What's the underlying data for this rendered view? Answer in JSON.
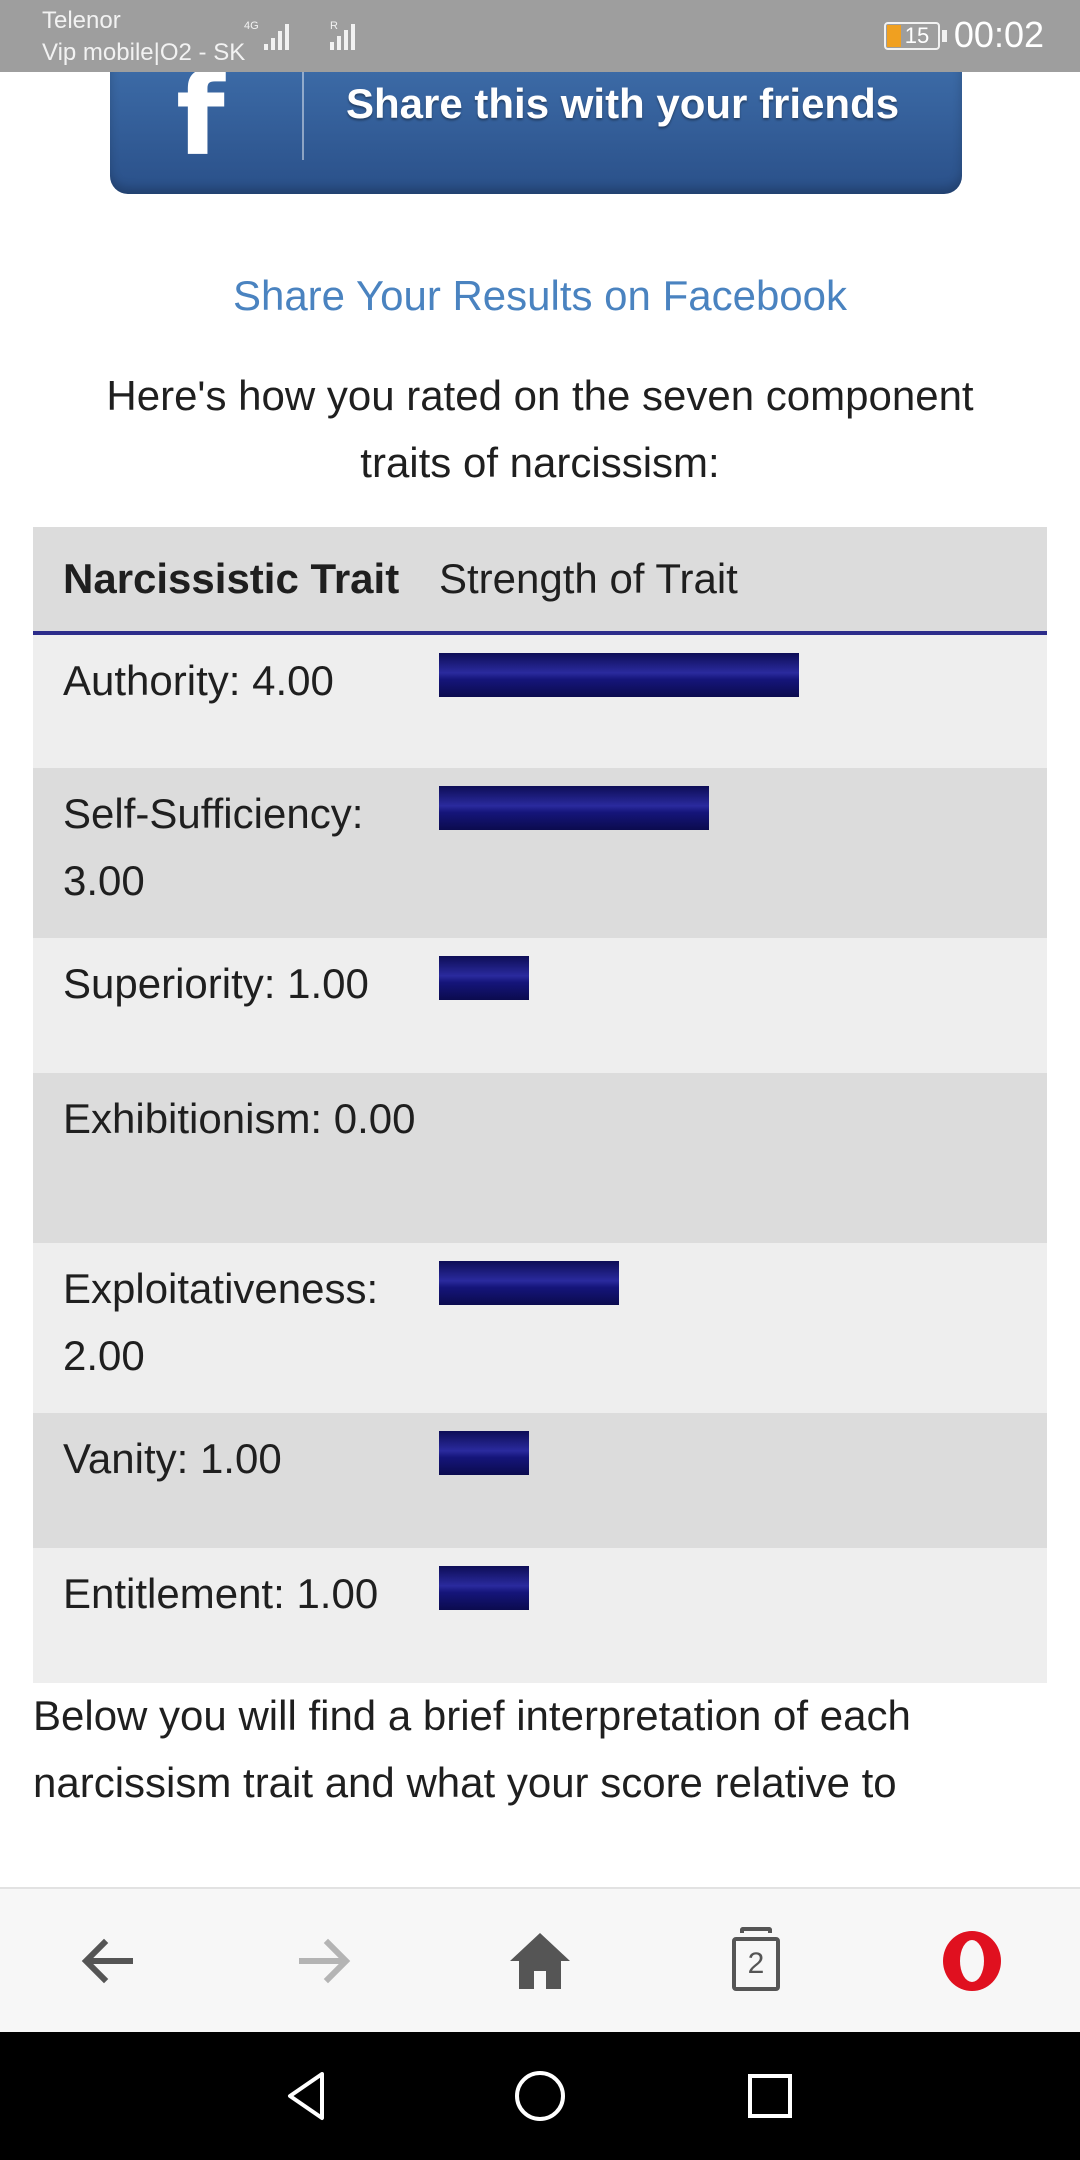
{
  "status_bar": {
    "carrier_1": "Telenor",
    "carrier_2": "Vip mobile|O2 - SK",
    "network_type": "4G",
    "roaming_indicator": "R",
    "battery": "15",
    "time": "00:02"
  },
  "page": {
    "facebook_banner": {
      "icon": "facebook-f-icon",
      "label": "Share this with your friends"
    },
    "share_link": "Share Your Results on Facebook",
    "intro": "Here's how you rated on the seven component traits of narcissism:",
    "table": {
      "headers": [
        "Narcissistic Trait",
        "Strength of Trait"
      ],
      "bar_color": "#1b1b7a",
      "rows": [
        {
          "label": "Authority: 4.00",
          "value": 4.0
        },
        {
          "label": "Self-Sufficiency: 3.00",
          "value": 3.0
        },
        {
          "label": "Superiority: 1.00",
          "value": 1.0
        },
        {
          "label": "Exhibitionism: 0.00",
          "value": 0.0
        },
        {
          "label": "Exploitativeness: 2.00",
          "value": 2.0
        },
        {
          "label": "Vanity: 1.00",
          "value": 1.0
        },
        {
          "label": "Entitlement: 1.00",
          "value": 1.0
        }
      ]
    },
    "below_text": "Below you will find a brief interpretation of each narcissism trait and what your score relative to"
  },
  "browser_toolbar": {
    "back": "back-arrow-icon",
    "forward": "forward-arrow-icon",
    "home": "home-icon",
    "tabs": "tabs-icon",
    "tab_count": "2",
    "menu": "opera-logo-icon"
  },
  "android_nav": {
    "back": "nav-back-icon",
    "home": "nav-home-icon",
    "recents": "nav-recents-icon"
  }
}
